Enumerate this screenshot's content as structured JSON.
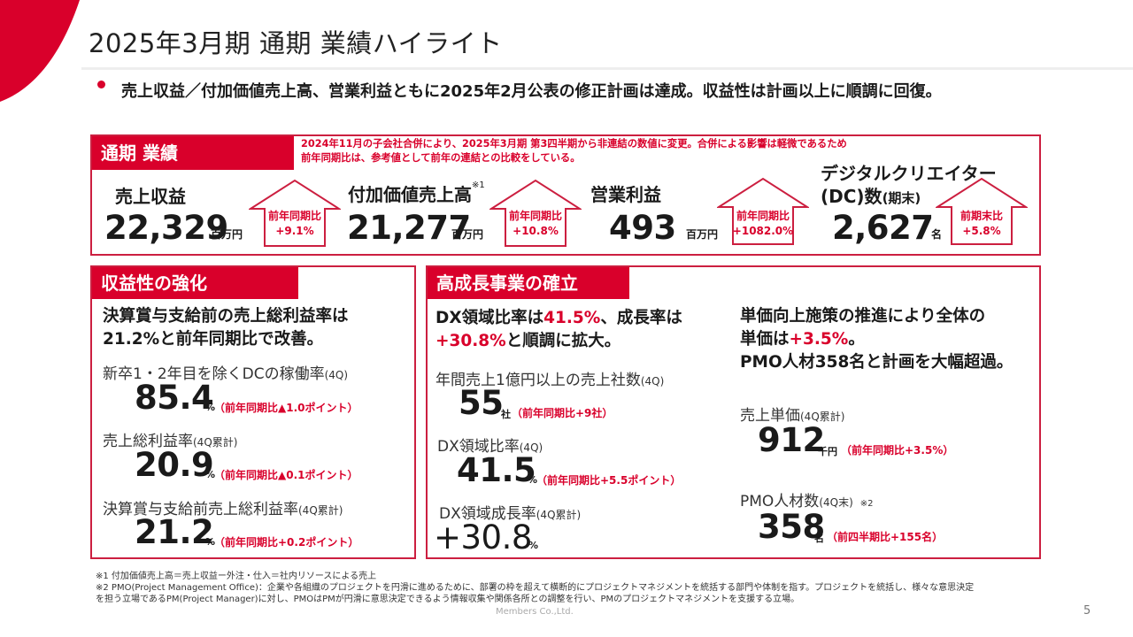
{
  "header": {
    "title": "2025年3月期 通期 業績ハイライト"
  },
  "summary": {
    "bullet": "売上収益／付加価値売上高、営業利益ともに2025年2月公表の修正計画は達成。収益性は計画以上に順調に回復。"
  },
  "full_year": {
    "tab": "通期 業績",
    "note_line1": "2024年11月の子会社合併により、2025年3月期 第3四半期から非連結の数値に変更。合併による影響は軽微であるため",
    "note_line2": "前年同期比は、参考値として前年の連結との比較をしている。",
    "kpis": [
      {
        "label": "売上収益",
        "value": "22,329",
        "unit": "百万円",
        "arrow_line1": "前年同期比",
        "arrow_line2": "+9.1%"
      },
      {
        "label": "付加価値売上高",
        "sup": "※1",
        "value": "21,277",
        "unit": "百万円",
        "arrow_line1": "前年同期比",
        "arrow_line2": "+10.8%"
      },
      {
        "label": "営業利益",
        "value": "493",
        "unit": "百万円",
        "arrow_line1": "前年同期比",
        "arrow_line2": "+1082.0%"
      },
      {
        "label_line1": "デジタルクリエイター",
        "label_line2": "(DC)数",
        "label_suffix": "(期末)",
        "value": "2,627",
        "unit": "名",
        "arrow_line1": "前期末比",
        "arrow_line2": "+5.8%"
      }
    ]
  },
  "profitability": {
    "tab": "収益性の強化",
    "head_line1": "決算賞与支給前の売上総利益率は",
    "head_line2": "21.2%と前年同期比で改善。",
    "metrics": [
      {
        "label": "新卒1・2年目を除くDCの稼働率",
        "label_suffix": "(4Q)",
        "value": "85.4",
        "unit": "%",
        "note": "（前年同期比▲1.0ポイント）"
      },
      {
        "label": "売上総利益率",
        "label_suffix": "(4Q累計)",
        "value": "20.9",
        "unit": "%",
        "note": "（前年同期比▲0.1ポイント）"
      },
      {
        "label": "決算賞与支給前売上総利益率",
        "label_suffix": "(4Q累計)",
        "value": "21.2",
        "unit": "%",
        "note": "（前年同期比+0.2ポイント）"
      }
    ]
  },
  "growth": {
    "tab": "高成長事業の確立",
    "left_head_a": "DX領域比率は",
    "left_head_b": "41.5%",
    "left_head_c": "、成長率は",
    "left_head_d": "+30.8%",
    "left_head_e": "と順調に拡大。",
    "left_metrics": [
      {
        "label": "年間売上1億円以上の売上社数",
        "label_suffix": "(4Q)",
        "value": "55",
        "unit": "社",
        "note": "（前年同期比+9社）"
      },
      {
        "label": "DX領域比率",
        "label_suffix": "(4Q)",
        "value": "41.5",
        "unit": "%",
        "note": "（前年同期比+5.5ポイント）"
      },
      {
        "label": "DX領域成長率",
        "label_suffix": "(4Q累計)",
        "value": "+30.8",
        "unit": "%"
      }
    ],
    "right_head_line1": "単価向上施策の推進により全体の",
    "right_head_line2a": "単価は",
    "right_head_line2b": "+3.5%",
    "right_head_line2c": "。",
    "right_head_line3": "PMO人材358名と計画を大幅超過。",
    "right_metrics": [
      {
        "label": "売上単価",
        "label_suffix": "(4Q累計)",
        "value": "912",
        "unit": "千円",
        "note": "（前年同期比+3.5%）"
      },
      {
        "label": "PMO人材数",
        "label_suffix": "(4Q末)",
        "sup": "※2",
        "value": "358",
        "unit": "名",
        "note": "（前四半期比+155名）"
      }
    ]
  },
  "footnotes": [
    "※1 付加価値売上高＝売上収益ー外注・仕入＝社内リソースによる売上",
    "※2 PMO(Project Management Office)：企業や各組織のプロジェクトを円滑に進めるために、部署の枠を超えて横断的にプロジェクトマネジメントを統括する部門や体制を指す。プロジェクトを統括し、様々な意思決定",
    "を担う立場であるPM(Project Manager)に対し、PMOはPMが円滑に意思決定できるよう情報収集や関係各所との調整を行い、PMのプロジェクトマネジメントを支援する立場。"
  ],
  "company": "Members Co.,Ltd.",
  "page_number": "5",
  "colors": {
    "accent": "#d9002b",
    "border": "#cc1f40"
  }
}
